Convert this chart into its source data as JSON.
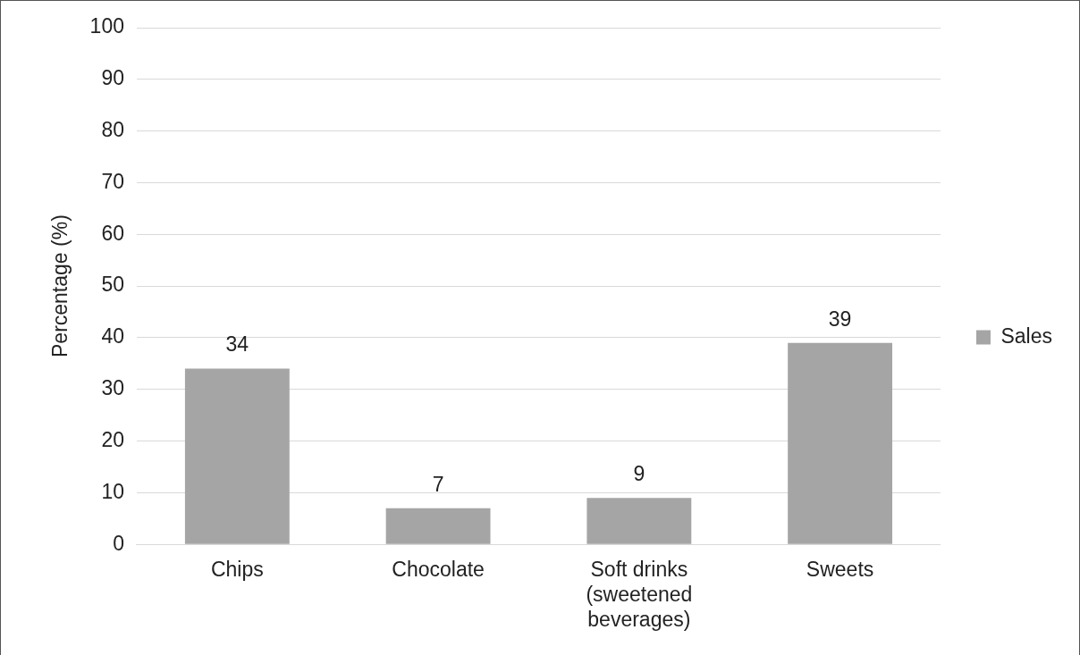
{
  "chart_data": {
    "type": "bar",
    "ylabel": "Percentage (%)",
    "categories": [
      "Chips",
      "Chocolate",
      "Soft drinks (sweetened beverages)",
      "Sweets"
    ],
    "series": [
      {
        "name": "Sales",
        "color": "#a5a5a5",
        "values": [
          34,
          7,
          9,
          39
        ]
      }
    ],
    "ylim": [
      0,
      100
    ],
    "yticks": [
      0,
      10,
      20,
      30,
      40,
      50,
      60,
      70,
      80,
      90,
      100
    ],
    "grid": "y",
    "legend": "right",
    "data_labels": true
  }
}
